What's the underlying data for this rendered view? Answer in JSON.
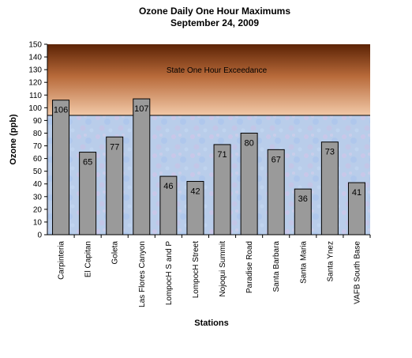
{
  "chart_data": {
    "type": "bar",
    "title": "Ozone Daily One Hour Maximums",
    "subtitle": "September 24, 2009",
    "xlabel": "Stations",
    "ylabel": "Ozone (ppb)",
    "ylim": [
      0,
      150
    ],
    "ytick_step": 10,
    "categories": [
      "Carpinteria",
      "El Capitan",
      "Goleta",
      "Las Flores Canyon",
      "LompocH S and P",
      "LompocH Street",
      "Nojoqui Summit",
      "Paradise Road",
      "Santa Barbara",
      "Santa Maria",
      "Santa Ynez",
      "VAFB South Base"
    ],
    "values": [
      106,
      65,
      77,
      107,
      46,
      42,
      71,
      80,
      67,
      36,
      73,
      41
    ],
    "threshold": {
      "value": 94,
      "label": "State One Hour Exceedance"
    },
    "grid": false,
    "legend": "none",
    "colors": {
      "bar": "#9a9a9a",
      "bar_stroke": "#000000",
      "exceed_top": "#5c2305",
      "exceed_bottom": "#f2c9a8",
      "below_fill": "#b9cdea"
    }
  }
}
